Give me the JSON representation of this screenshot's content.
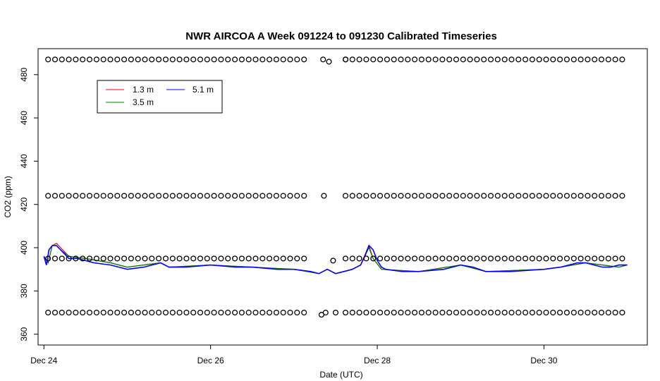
{
  "chart_data": {
    "type": "line",
    "title": "NWR AIRCOA A  Week 091224 to 091230  Calibrated Timeseries",
    "xlabel": "Date (UTC)",
    "ylabel": "CO2 (ppm)",
    "xlim": [
      -0.07,
      7.24
    ],
    "ylim": [
      355,
      492
    ],
    "x_ticks": [
      {
        "value": 0,
        "label": "Dec 24"
      },
      {
        "value": 2,
        "label": "Dec 26"
      },
      {
        "value": 4,
        "label": "Dec 28"
      },
      {
        "value": 6,
        "label": "Dec 30"
      }
    ],
    "y_ticks": [
      {
        "value": 360,
        "label": "360"
      },
      {
        "value": 380,
        "label": "380"
      },
      {
        "value": 400,
        "label": "400"
      },
      {
        "value": 420,
        "label": "420"
      },
      {
        "value": 440,
        "label": "440"
      },
      {
        "value": 460,
        "label": "460"
      },
      {
        "value": 480,
        "label": "480"
      }
    ],
    "legend_position": "top-left",
    "series": [
      {
        "name": "1.3 m",
        "color": "#ff0000",
        "x": [
          0.0,
          0.05,
          0.1,
          0.15,
          0.2,
          0.3,
          0.5,
          0.8,
          1.0,
          1.4,
          1.5,
          2.0,
          2.5,
          3.0,
          3.3,
          3.4,
          3.5,
          3.7,
          3.8,
          3.9,
          3.95,
          4.05,
          4.5,
          5.0,
          5.3,
          6.0,
          6.2,
          6.5,
          6.9,
          7.0
        ],
        "y": [
          396,
          393,
          401,
          402,
          400,
          396,
          395,
          393,
          391,
          393,
          391,
          392,
          391,
          390,
          388,
          390,
          388,
          390,
          392,
          401,
          395,
          390,
          389,
          392,
          389,
          390,
          391,
          393,
          391,
          392
        ]
      },
      {
        "name": "3.5 m",
        "color": "#008000",
        "x": [
          0.0,
          0.05,
          0.1,
          0.15,
          0.2,
          0.3,
          0.5,
          0.8,
          1.0,
          1.4,
          1.5,
          2.0,
          2.5,
          3.0,
          3.3,
          3.4,
          3.5,
          3.7,
          3.8,
          3.9,
          3.95,
          4.05,
          4.5,
          5.0,
          5.3,
          6.0,
          6.2,
          6.5,
          6.9,
          7.0
        ],
        "y": [
          396,
          393,
          401,
          401,
          399,
          396,
          395,
          393,
          391,
          393,
          391,
          392,
          391,
          390,
          388,
          390,
          388,
          390,
          392,
          400,
          395,
          390,
          389,
          392,
          389,
          390,
          391,
          393,
          391,
          392
        ]
      },
      {
        "name": "5.1 m",
        "color": "#0000ff",
        "x": [
          0.0,
          0.03,
          0.06,
          0.1,
          0.15,
          0.2,
          0.25,
          0.3,
          0.4,
          0.5,
          0.6,
          0.8,
          1.0,
          1.2,
          1.4,
          1.5,
          1.7,
          2.0,
          2.3,
          2.5,
          2.8,
          3.0,
          3.2,
          3.3,
          3.4,
          3.5,
          3.6,
          3.7,
          3.8,
          3.85,
          3.9,
          3.95,
          4.0,
          4.05,
          4.1,
          4.3,
          4.5,
          4.8,
          5.0,
          5.15,
          5.3,
          5.6,
          6.0,
          6.2,
          6.4,
          6.5,
          6.6,
          6.7,
          6.8,
          6.9,
          7.0
        ],
        "y": [
          396,
          392,
          399,
          401,
          401,
          399,
          397,
          395,
          395,
          394,
          393,
          392,
          390,
          391,
          393,
          391,
          391,
          392,
          391,
          391,
          390,
          390,
          389,
          388,
          390,
          388,
          389,
          390,
          392,
          396,
          401,
          399,
          394,
          391,
          390,
          389,
          389,
          390,
          392,
          391,
          389,
          389,
          390,
          391,
          393,
          393,
          392,
          391,
          391,
          392,
          392
        ]
      }
    ],
    "reference_points": {
      "marker": "open-circle",
      "levels": [
        487,
        424,
        395,
        370
      ],
      "x_start": 0.05,
      "x_end": 7.0,
      "step": 0.083,
      "gap": [
        3.2,
        3.6
      ],
      "extras": [
        {
          "x": 3.35,
          "y": 487
        },
        {
          "x": 3.42,
          "y": 486
        },
        {
          "x": 3.36,
          "y": 424
        },
        {
          "x": 3.38,
          "y": 370
        },
        {
          "x": 3.33,
          "y": 369
        },
        {
          "x": 3.47,
          "y": 394
        },
        {
          "x": 3.5,
          "y": 370
        },
        {
          "x": 3.62,
          "y": 487
        }
      ]
    }
  }
}
